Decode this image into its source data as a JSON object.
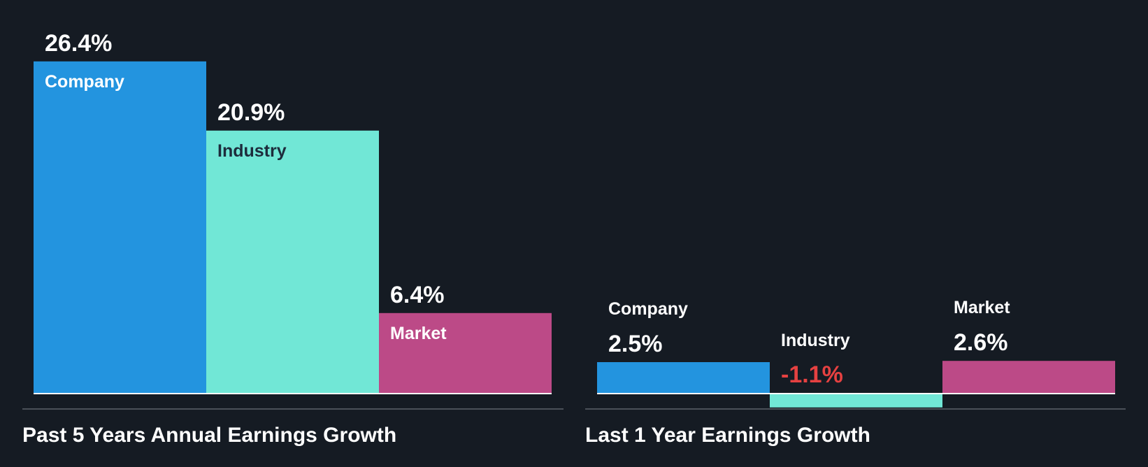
{
  "chart_data": [
    {
      "type": "bar",
      "title": "Past 5 Years Annual Earnings Growth",
      "unit": "%",
      "categories": [
        "Company",
        "Industry",
        "Market"
      ],
      "values": [
        26.4,
        20.9,
        6.4
      ],
      "value_labels": [
        "26.4%",
        "20.9%",
        "6.4%"
      ],
      "colors": [
        "#2394df",
        "#71e7d6",
        "#bc4a87"
      ],
      "label_colors": [
        "#ffffff",
        "#1d2c3c",
        "#ffffff"
      ],
      "value_label_colors": [
        "#ffffff",
        "#ffffff",
        "#ffffff"
      ],
      "xlabel": "",
      "ylabel": "",
      "grid": false
    },
    {
      "type": "bar",
      "title": "Last 1 Year Earnings Growth",
      "unit": "%",
      "categories": [
        "Company",
        "Industry",
        "Market"
      ],
      "values": [
        2.5,
        -1.1,
        2.6
      ],
      "value_labels": [
        "2.5%",
        "-1.1%",
        "2.6%"
      ],
      "colors": [
        "#2394df",
        "#71e7d6",
        "#bc4a87"
      ],
      "label_colors": [
        "#ffffff",
        "#ffffff",
        "#ffffff"
      ],
      "value_label_colors": [
        "#ffffff",
        "#e64141",
        "#ffffff"
      ],
      "xlabel": "",
      "ylabel": "",
      "grid": false
    }
  ],
  "colors": {
    "background": "#151b23",
    "baseline": "#ffffff",
    "divider": "#4a5058",
    "negative": "#e64141"
  }
}
